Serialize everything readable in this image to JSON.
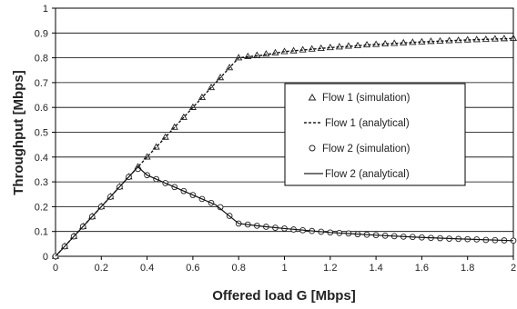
{
  "chart_data": {
    "type": "line",
    "title": "",
    "xlabel": "Offered load G [Mbps]",
    "ylabel": "Throughput [Mbps]",
    "xlim": [
      0,
      2
    ],
    "ylim": [
      0,
      1
    ],
    "x_ticks": [
      "0",
      "0.2",
      "0.4",
      "0.6",
      "0.8",
      "1",
      "1.2",
      "1.4",
      "1.6",
      "1.8",
      "2"
    ],
    "y_ticks": [
      "0",
      "0.1",
      "0.2",
      "0.3",
      "0.4",
      "0.5",
      "0.6",
      "0.7",
      "0.8",
      "0.9",
      "1"
    ],
    "grid": "horizontal",
    "legend_position": "center-right",
    "series": [
      {
        "name": "Flow 1 (simulation)",
        "marker": "triangle",
        "x": [
          0,
          0.04,
          0.08,
          0.12,
          0.16,
          0.2,
          0.24,
          0.28,
          0.32,
          0.36,
          0.4,
          0.44,
          0.48,
          0.52,
          0.56,
          0.6,
          0.64,
          0.68,
          0.72,
          0.76,
          0.8,
          0.84,
          0.88,
          0.92,
          0.96,
          1.0,
          1.04,
          1.08,
          1.12,
          1.16,
          1.2,
          1.24,
          1.28,
          1.32,
          1.36,
          1.4,
          1.44,
          1.48,
          1.52,
          1.56,
          1.6,
          1.64,
          1.68,
          1.72,
          1.76,
          1.8,
          1.84,
          1.88,
          1.92,
          1.96,
          2.0
        ],
        "y": [
          0,
          0.04,
          0.08,
          0.12,
          0.16,
          0.2,
          0.24,
          0.28,
          0.32,
          0.36,
          0.4,
          0.44,
          0.48,
          0.52,
          0.56,
          0.6,
          0.64,
          0.68,
          0.72,
          0.76,
          0.8,
          0.805,
          0.81,
          0.815,
          0.82,
          0.825,
          0.828,
          0.832,
          0.835,
          0.838,
          0.841,
          0.844,
          0.847,
          0.849,
          0.852,
          0.854,
          0.856,
          0.858,
          0.86,
          0.862,
          0.864,
          0.866,
          0.867,
          0.869,
          0.87,
          0.872,
          0.873,
          0.874,
          0.876,
          0.877,
          0.878
        ]
      },
      {
        "name": "Flow 1 (analytical)",
        "style": "dashed",
        "x": [
          0,
          0.8,
          0.9,
          1.0,
          1.2,
          1.4,
          1.6,
          1.8,
          2.0
        ],
        "y": [
          0,
          0.8,
          0.81,
          0.825,
          0.841,
          0.854,
          0.864,
          0.872,
          0.878
        ]
      },
      {
        "name": "Flow 2 (simulation)",
        "marker": "circle",
        "x": [
          0,
          0.04,
          0.08,
          0.12,
          0.16,
          0.2,
          0.24,
          0.28,
          0.32,
          0.36,
          0.4,
          0.44,
          0.48,
          0.52,
          0.56,
          0.6,
          0.64,
          0.68,
          0.72,
          0.76,
          0.8,
          0.84,
          0.88,
          0.92,
          0.96,
          1.0,
          1.04,
          1.08,
          1.12,
          1.16,
          1.2,
          1.24,
          1.28,
          1.32,
          1.36,
          1.4,
          1.44,
          1.48,
          1.52,
          1.56,
          1.6,
          1.64,
          1.68,
          1.72,
          1.76,
          1.8,
          1.84,
          1.88,
          1.92,
          1.96,
          2.0
        ],
        "y": [
          0,
          0.04,
          0.08,
          0.12,
          0.16,
          0.2,
          0.24,
          0.28,
          0.32,
          0.352,
          0.327,
          0.311,
          0.295,
          0.279,
          0.263,
          0.247,
          0.231,
          0.215,
          0.198,
          0.163,
          0.132,
          0.128,
          0.123,
          0.119,
          0.115,
          0.112,
          0.108,
          0.105,
          0.102,
          0.099,
          0.096,
          0.094,
          0.092,
          0.089,
          0.087,
          0.085,
          0.083,
          0.081,
          0.079,
          0.078,
          0.076,
          0.074,
          0.073,
          0.071,
          0.07,
          0.069,
          0.068,
          0.066,
          0.065,
          0.064,
          0.063
        ]
      },
      {
        "name": "Flow 2 (analytical)",
        "style": "solid",
        "x": [
          0,
          0.36,
          0.4,
          0.5,
          0.6,
          0.7,
          0.8,
          0.9,
          1.0,
          1.2,
          1.4,
          1.6,
          1.8,
          2.0
        ],
        "y": [
          0,
          0.36,
          0.327,
          0.287,
          0.247,
          0.207,
          0.132,
          0.121,
          0.112,
          0.096,
          0.085,
          0.076,
          0.069,
          0.063
        ]
      }
    ]
  }
}
